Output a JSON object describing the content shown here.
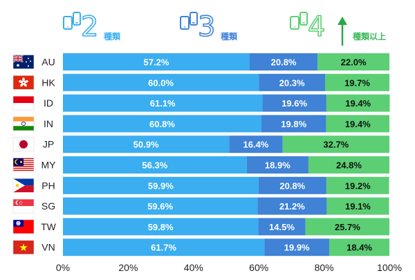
{
  "chart_data": {
    "type": "bar",
    "orientation": "horizontal",
    "stacked": true,
    "categories": [
      "AU",
      "HK",
      "ID",
      "IN",
      "JP",
      "MY",
      "PH",
      "SG",
      "TW",
      "VN"
    ],
    "series": [
      {
        "name": "2 種類",
        "color": "#3aaef0",
        "values": [
          57.2,
          60.0,
          61.1,
          60.8,
          50.9,
          56.3,
          59.9,
          59.6,
          59.8,
          61.7
        ],
        "labels": [
          "57.2%",
          "60.0%",
          "61.1%",
          "60.8%",
          "50.9%",
          "56.3%",
          "59.9%",
          "59.6%",
          "59.8%",
          "61.7%"
        ]
      },
      {
        "name": "3 種類",
        "color": "#3f82d6",
        "values": [
          20.8,
          20.3,
          19.6,
          19.8,
          16.4,
          18.9,
          20.8,
          21.2,
          14.5,
          19.9
        ],
        "labels": [
          "20.8%",
          "20.3%",
          "19.6%",
          "19.8%",
          "16.4%",
          "18.9%",
          "20.8%",
          "21.2%",
          "14.5%",
          "19.9%"
        ]
      },
      {
        "name": "4 種類以上",
        "color": "#5ccf74",
        "values": [
          22.0,
          19.7,
          19.4,
          19.4,
          32.7,
          24.8,
          19.2,
          19.1,
          25.7,
          18.4
        ],
        "labels": [
          "22.0%",
          "19.7%",
          "19.4%",
          "19.4%",
          "32.7%",
          "24.8%",
          "19.2%",
          "19.1%",
          "25.7%",
          "18.4%"
        ]
      }
    ],
    "legend": [
      {
        "number": "2",
        "text": "種類",
        "color": "#3aaef0",
        "icon": "devices-icon"
      },
      {
        "number": "3",
        "text": "種類",
        "color": "#3f82d6",
        "icon": "devices-icon"
      },
      {
        "number": "4",
        "text": "種類以上",
        "color": "#5ccf74",
        "icon": "devices-icon",
        "arrow": "up-arrow-icon"
      }
    ],
    "xlim": [
      0,
      100
    ],
    "xticks": [
      0,
      20,
      40,
      60,
      80,
      100
    ],
    "xtick_labels": [
      "0%",
      "20%",
      "40%",
      "60%",
      "80%",
      "100%"
    ],
    "label_colors": [
      "#ffffff",
      "#ffffff",
      "#111111"
    ],
    "flags": {
      "AU": "australia-flag-icon",
      "HK": "hong-kong-flag-icon",
      "ID": "indonesia-flag-icon",
      "IN": "india-flag-icon",
      "JP": "japan-flag-icon",
      "MY": "malaysia-flag-icon",
      "PH": "philippines-flag-icon",
      "SG": "singapore-flag-icon",
      "TW": "taiwan-flag-icon",
      "VN": "vietnam-flag-icon"
    },
    "legend_position": "top",
    "grid": false
  }
}
